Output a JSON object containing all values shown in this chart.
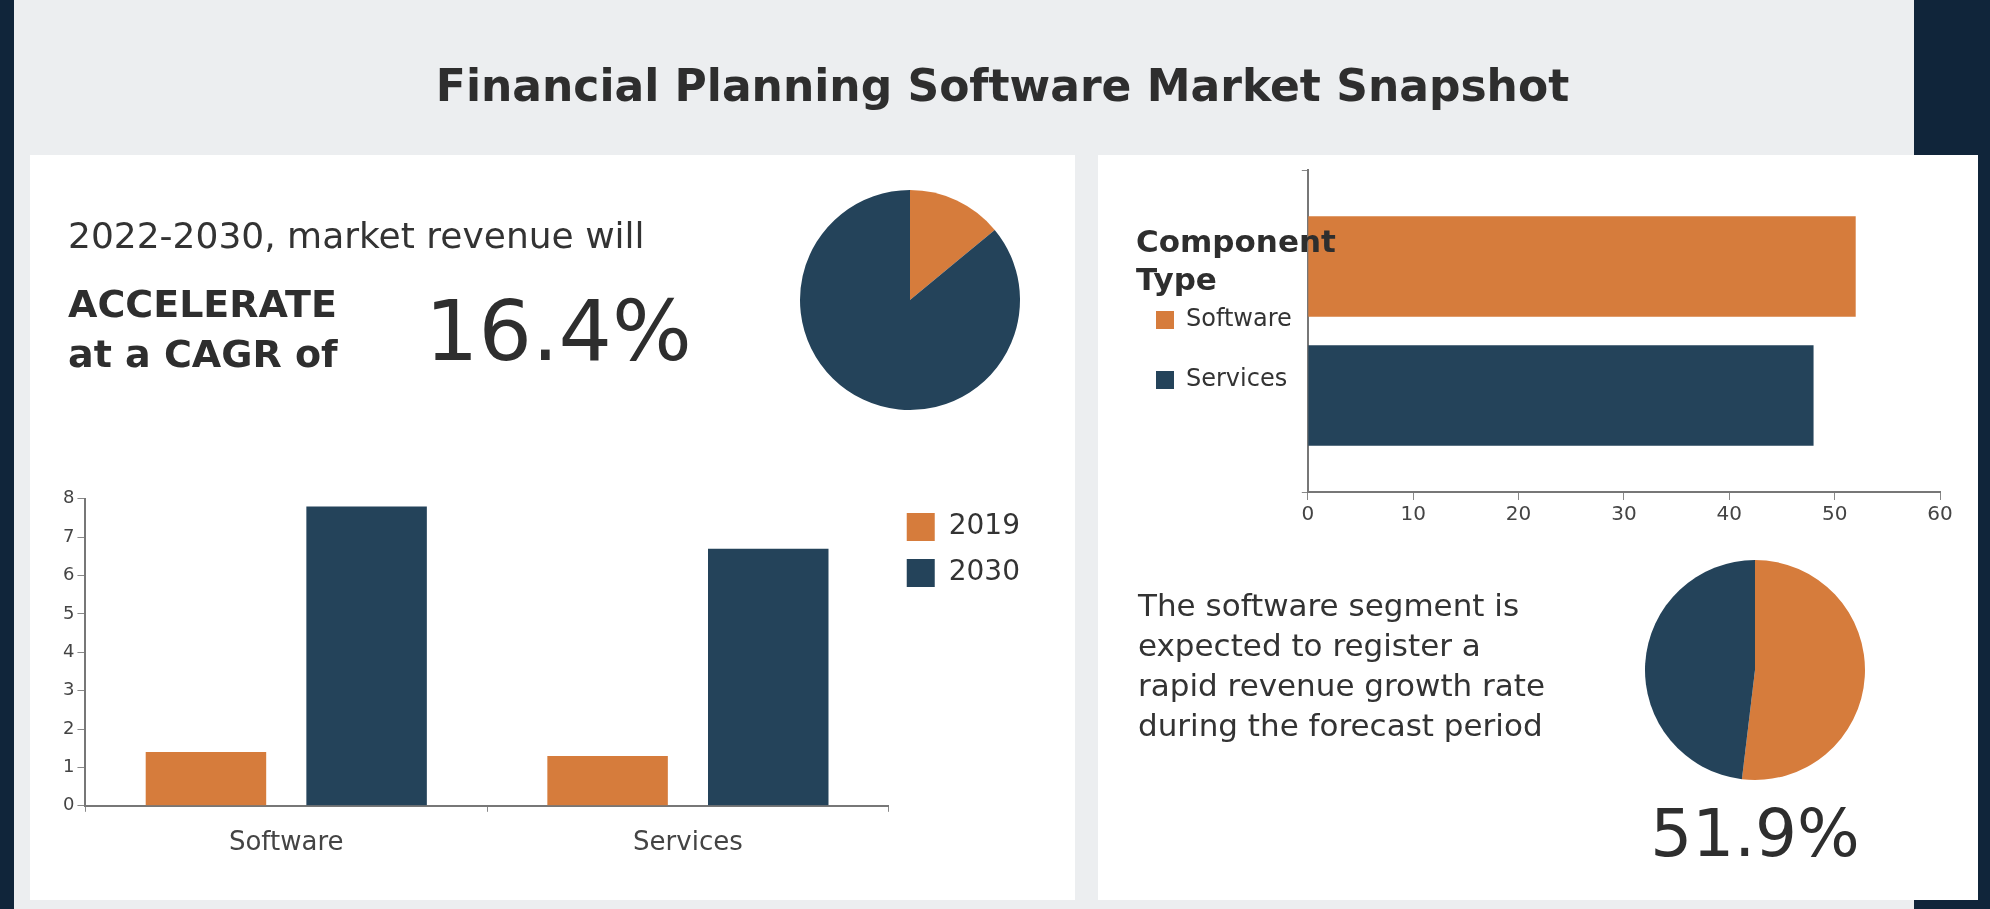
{
  "chart_data": [
    {
      "type": "other",
      "title": "Financial Planning Software Market Snapshot",
      "annotations": [
        "2022-2030, market revenue will",
        "ACCELERATE",
        "at a CAGR of",
        "16.4%"
      ]
    },
    {
      "type": "pie",
      "categories": [
        null,
        null
      ],
      "values": [
        14,
        86
      ],
      "colors": [
        "#d67c3c",
        "#24435a"
      ]
    },
    {
      "type": "bar",
      "categories": [
        "Software",
        "Services"
      ],
      "series": [
        {
          "name": "2019",
          "color": "#d67c3c",
          "values": [
            1.4,
            1.3
          ]
        },
        {
          "name": "2030",
          "color": "#24435a",
          "values": [
            7.8,
            6.7
          ]
        }
      ],
      "ylim": [
        0,
        8
      ],
      "yticks": [
        0,
        1,
        2,
        3,
        4,
        5,
        6,
        7,
        8
      ],
      "legend": "top right"
    },
    {
      "type": "bar",
      "orientation": "horizontal",
      "categories": [
        null
      ],
      "legend_title": "Component Type",
      "series": [
        {
          "name": "Software",
          "color": "#d67c3c",
          "values": [
            52
          ]
        },
        {
          "name": "Services",
          "color": "#24435a",
          "values": [
            48
          ]
        }
      ],
      "xlim": [
        0,
        60
      ],
      "xticks": [
        0,
        10,
        20,
        30,
        40,
        50,
        60
      ],
      "tick_labels": "x",
      "legend": "left"
    },
    {
      "type": "pie",
      "categories": [
        null,
        null
      ],
      "values": [
        51.9,
        48.1
      ],
      "colors": [
        "#d67c3c",
        "#24435a"
      ],
      "value_labels": [
        "51.9%",
        null
      ],
      "annotations": [
        "The software segment is expected to register a rapid revenue growth rate during the forecast period"
      ]
    }
  ]
}
